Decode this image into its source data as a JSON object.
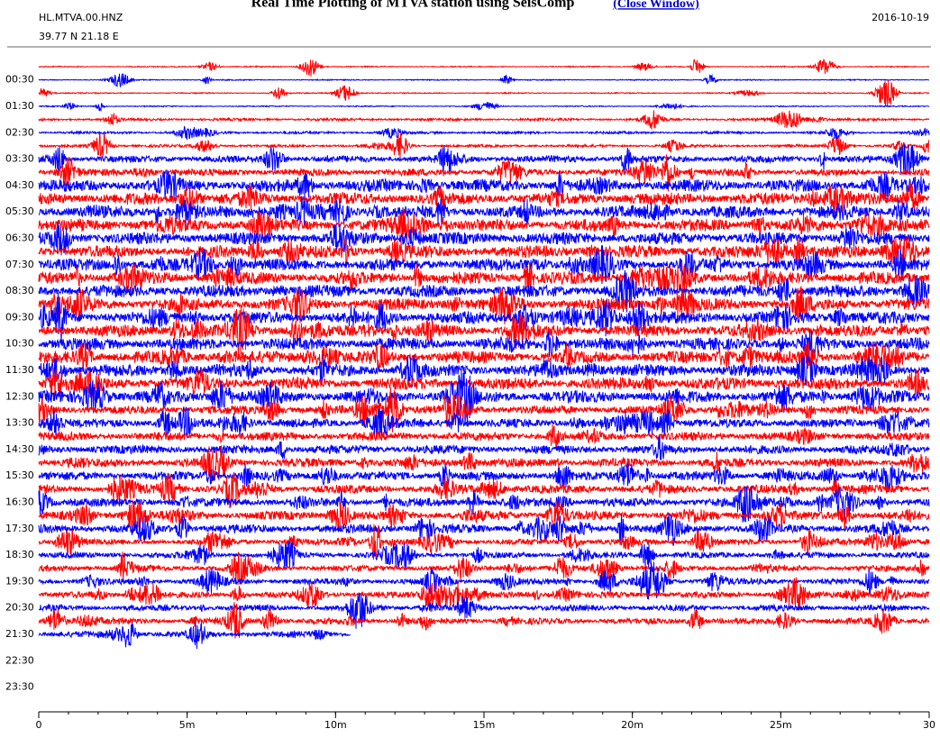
{
  "chart_data": {
    "type": "helicorder",
    "title": "Real Time Plotting of MTVA station using SeisComp",
    "link_text": "(Close Window)",
    "station": "HL.MTVA.00.HNZ",
    "coordinates": "39.77 N 21.18 E",
    "date": "2016-10-19",
    "colors": [
      "#ff0000",
      "#0000ff"
    ],
    "categories": [
      null,
      "00:30",
      null,
      "01:30",
      null,
      "02:30",
      null,
      "03:30",
      null,
      "04:30",
      null,
      "05:30",
      null,
      "06:30",
      null,
      "07:30",
      null,
      "08:30",
      null,
      "09:30",
      null,
      "10:30",
      null,
      "11:30",
      null,
      "12:30",
      null,
      "13:30",
      null,
      "14:30",
      null,
      "15:30",
      null,
      "16:30",
      null,
      "17:30",
      null,
      "18:30",
      null,
      "19:30",
      null,
      "20:30",
      null,
      "21:30",
      null,
      "22:30",
      null,
      "23:30"
    ],
    "trace_rows": 44,
    "last_sample_minute": 10.5,
    "xlim": [
      0,
      30
    ],
    "xticks": [
      0,
      {
        "value": 5,
        "label": "5m"
      },
      {
        "value": 10,
        "label": "10m"
      },
      {
        "value": 15,
        "label": "15m"
      },
      {
        "value": 20,
        "label": "20m"
      },
      {
        "value": 25,
        "label": "25m"
      },
      30
    ]
  }
}
